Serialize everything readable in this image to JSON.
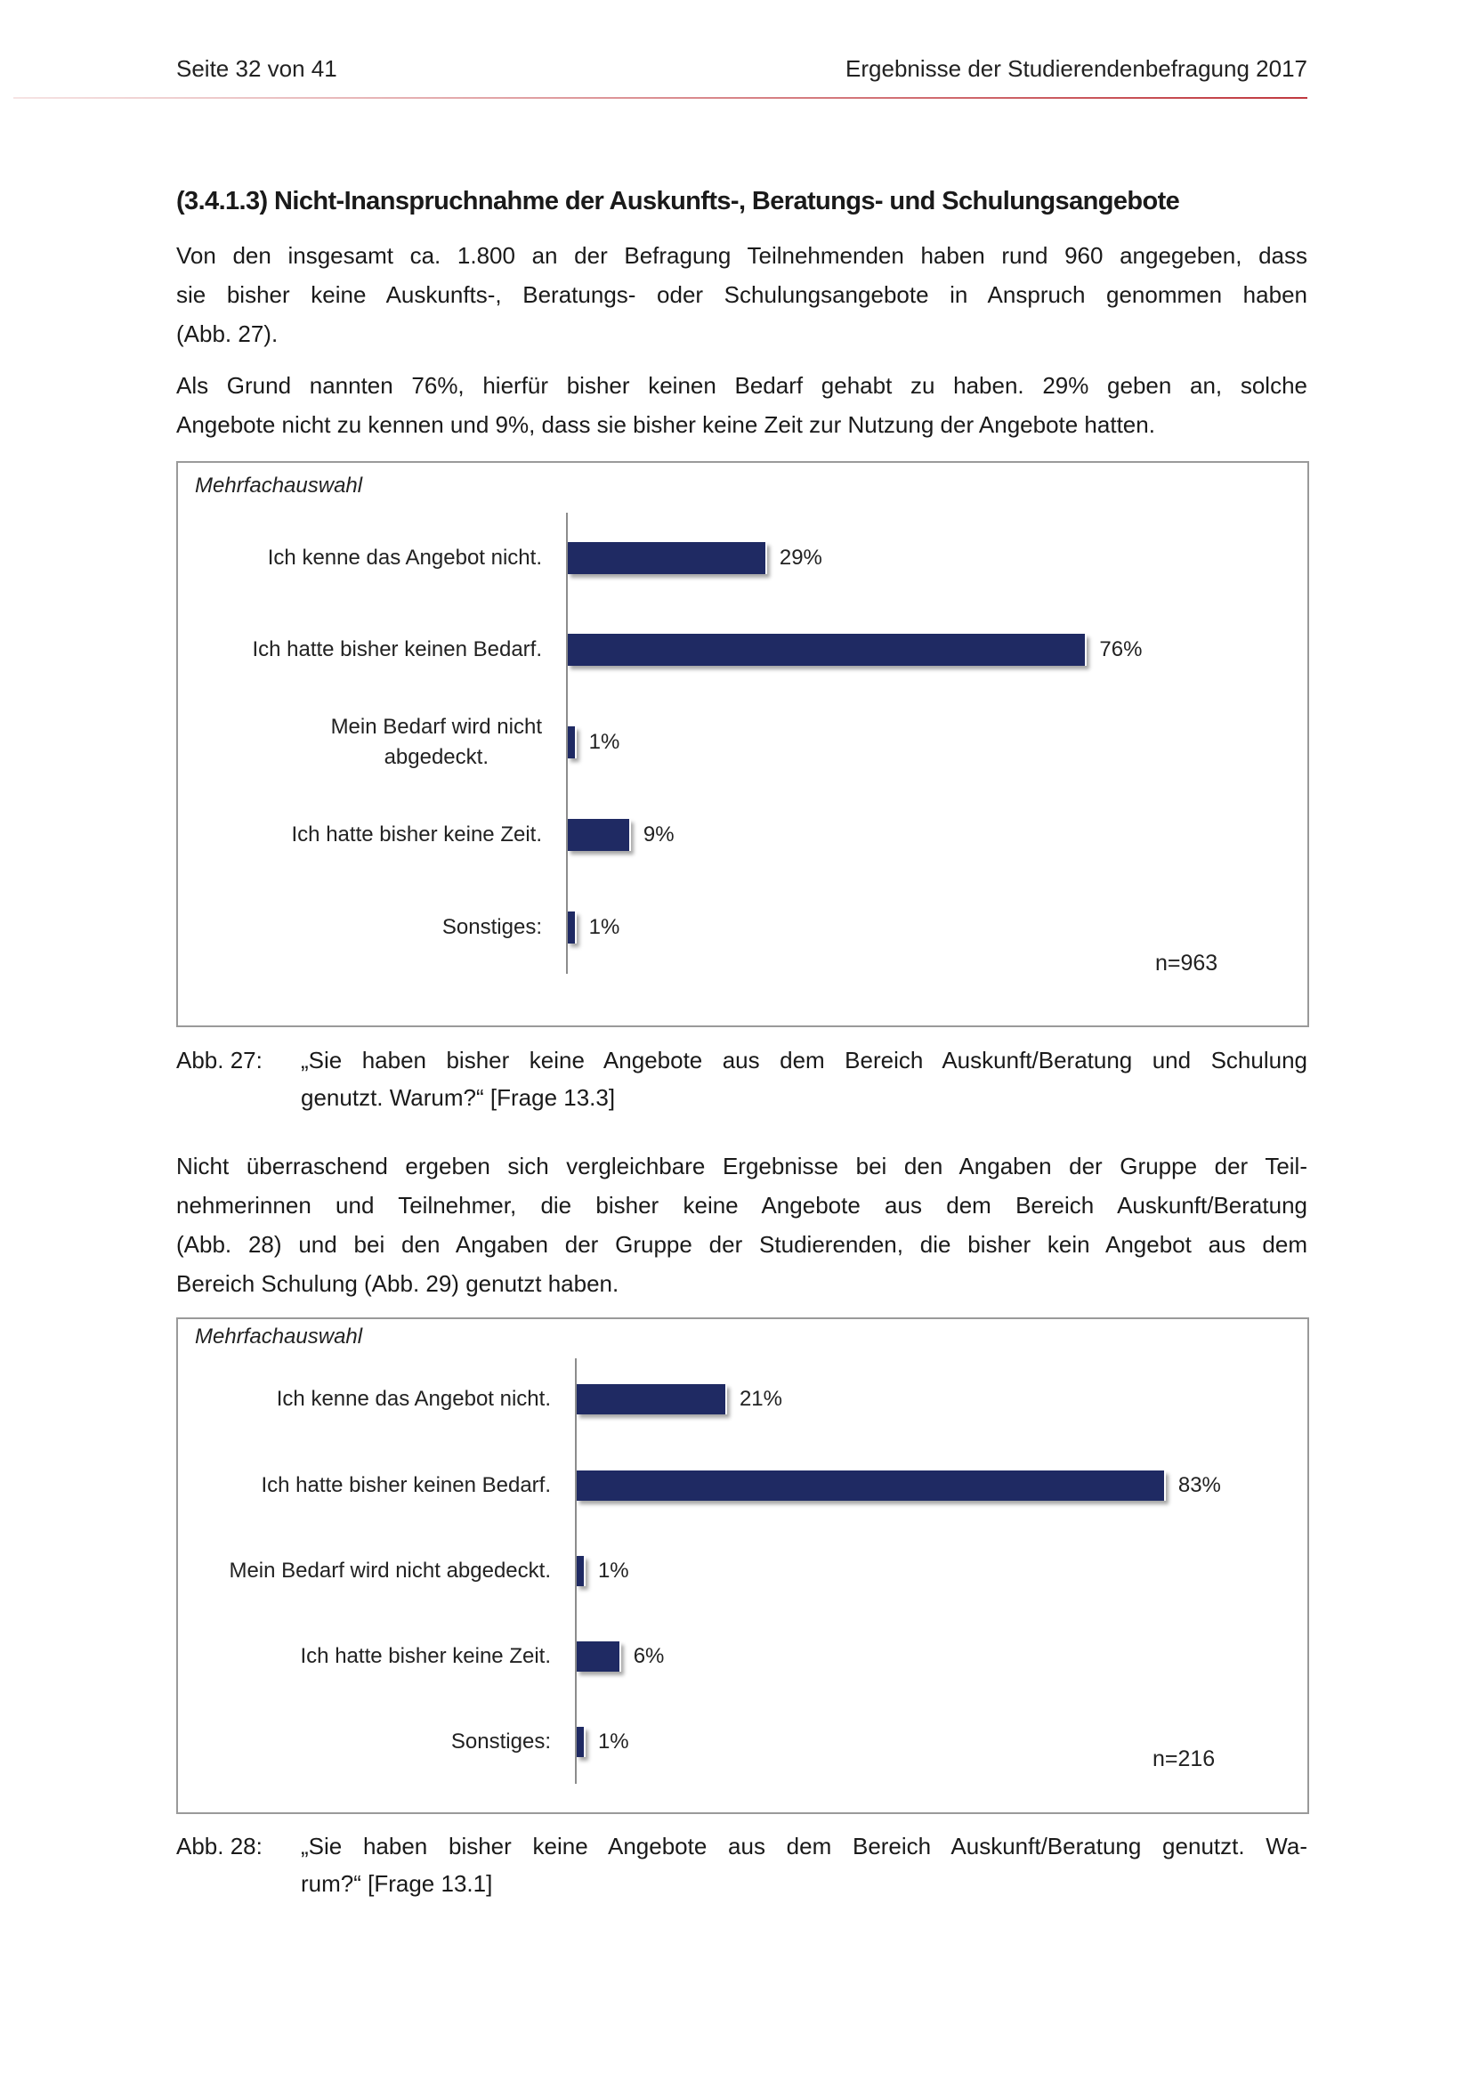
{
  "header": {
    "page": "Seite 32 von 41",
    "title": "Ergebnisse der Studierendenbefragung 2017",
    "accent_color": "#c0393f"
  },
  "heading": "(3.4.1.3) Nicht-Inanspruchnahme der Auskunfts-, Beratungs- und Schulungsangebote",
  "paragraphs": [
    [
      "Von den insgesamt ca. 1.800 an der Befragung Teilnehmenden haben rund 960 angegeben, dass",
      "sie bisher keine Auskunfts-, Beratungs- oder Schulungsangebote in Anspruch genommen haben",
      "(Abb. 27)."
    ],
    [
      "Als Grund nannten 76%, hierfür bisher keinen Bedarf gehabt zu haben. 29% geben an, solche",
      "Angebote nicht zu kennen und 9%, dass sie bisher keine Zeit zur Nutzung der Angebote hatten."
    ],
    [
      "Nicht überraschend ergeben sich vergleichbare Ergebnisse bei den Angaben der Gruppe der Teil-",
      "nehmerinnen und Teilnehmer, die bisher keine Angebote aus dem Bereich Auskunft/Beratung",
      "(Abb. 28) und bei den Angaben der Gruppe der Studierenden, die bisher kein Angebot aus dem",
      "Bereich Schulung (Abb. 29) genutzt haben."
    ]
  ],
  "captions": [
    {
      "tag": "Abb. 27:",
      "lines": [
        "„Sie haben bisher keine Angebote aus dem Bereich Auskunft/Beratung und Schulung",
        "genutzt. Warum?“ [Frage 13.3]"
      ]
    },
    {
      "tag": "Abb. 28:",
      "lines": [
        "„Sie haben bisher keine Angebote aus dem Bereich Auskunft/Beratung genutzt. Wa-",
        "rum?“ [Frage 13.1]"
      ]
    }
  ],
  "chart_data": [
    {
      "type": "bar",
      "orientation": "horizontal",
      "subtitle": "Mehrfachauswahl",
      "categories": [
        "Ich kenne das Angebot nicht.",
        "Ich hatte bisher keinen Bedarf.",
        "Mein Bedarf wird nicht abgedeckt.",
        "Ich hatte bisher keine Zeit.",
        "Sonstiges:"
      ],
      "category_lines": [
        [
          "Ich kenne das Angebot nicht."
        ],
        [
          "Ich hatte bisher keinen Bedarf."
        ],
        [
          "Mein Bedarf wird nicht",
          "abgedeckt."
        ],
        [
          "Ich hatte bisher keine Zeit."
        ],
        [
          "Sonstiges:"
        ]
      ],
      "values": [
        29,
        76,
        1,
        9,
        1
      ],
      "value_labels": [
        "29%",
        "76%",
        "1%",
        "9%",
        "1%"
      ],
      "unit": "%",
      "note": "n=963",
      "bar_color": "#1f2a63",
      "xlim": [
        0,
        100
      ],
      "grid": false
    },
    {
      "type": "bar",
      "orientation": "horizontal",
      "subtitle": "Mehrfachauswahl",
      "categories": [
        "Ich kenne das Angebot nicht.",
        "Ich hatte bisher keinen Bedarf.",
        "Mein Bedarf wird nicht abgedeckt.",
        "Ich hatte bisher keine Zeit.",
        "Sonstiges:"
      ],
      "category_lines": [
        [
          "Ich kenne das Angebot nicht."
        ],
        [
          "Ich hatte bisher keinen Bedarf."
        ],
        [
          "Mein Bedarf wird nicht abgedeckt."
        ],
        [
          "Ich hatte bisher keine Zeit."
        ],
        [
          "Sonstiges:"
        ]
      ],
      "values": [
        21,
        83,
        1,
        6,
        1
      ],
      "value_labels": [
        "21%",
        "83%",
        "1%",
        "6%",
        "1%"
      ],
      "unit": "%",
      "note": "n=216",
      "bar_color": "#1f2a63",
      "xlim": [
        0,
        100
      ],
      "grid": false
    }
  ]
}
